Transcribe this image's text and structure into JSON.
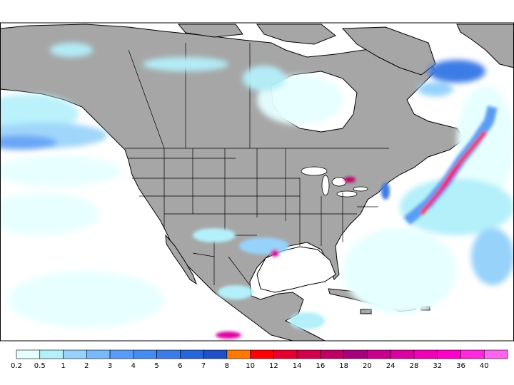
{
  "legend": {
    "bins": [
      {
        "label": "0.2",
        "color": "#e6ffff"
      },
      {
        "label": "0.5",
        "color": "#b4f0fa"
      },
      {
        "label": "1",
        "color": "#96d2fa"
      },
      {
        "label": "2",
        "color": "#78b9fa"
      },
      {
        "label": "3",
        "color": "#5a9cf5"
      },
      {
        "label": "4",
        "color": "#468cf0"
      },
      {
        "label": "5",
        "color": "#3c7ce6"
      },
      {
        "label": "6",
        "color": "#2864dc"
      },
      {
        "label": "7",
        "color": "#1e50c8"
      },
      {
        "label": "8",
        "color": "#ff7800"
      },
      {
        "label": "10",
        "color": "#ff0000"
      },
      {
        "label": "12",
        "color": "#e60032"
      },
      {
        "label": "14",
        "color": "#d2004b"
      },
      {
        "label": "16",
        "color": "#be0064"
      },
      {
        "label": "18",
        "color": "#a5007d"
      },
      {
        "label": "20",
        "color": "#c8008c"
      },
      {
        "label": "24",
        "color": "#dc00a0"
      },
      {
        "label": "28",
        "color": "#f000b4"
      },
      {
        "label": "32",
        "color": "#ff00c8"
      },
      {
        "label": "36",
        "color": "#ff28dc"
      },
      {
        "label": "40",
        "color": "#ff64f0"
      }
    ]
  },
  "map": {
    "land_color": "#a6a6a6",
    "ocean_color": "#ffffff",
    "border_color": "#000000"
  }
}
